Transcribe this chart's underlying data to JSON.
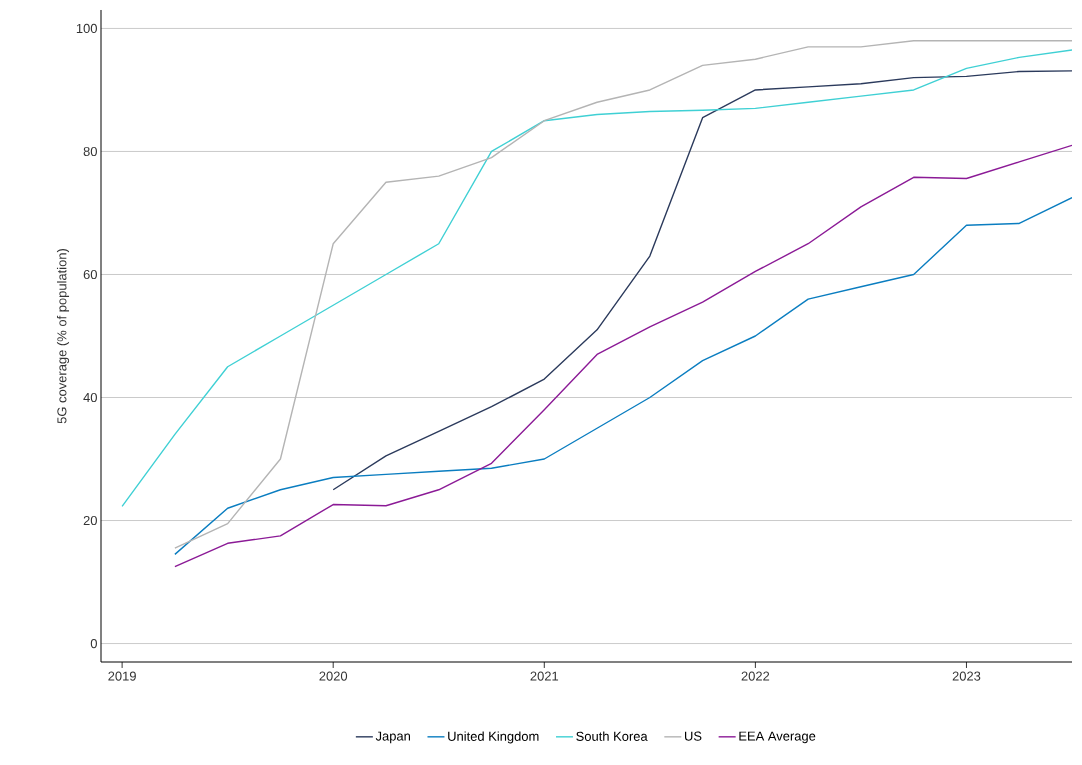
{
  "chart_data": {
    "type": "line",
    "ylabel": "5G coverage (% of population)",
    "x": [
      2019.0,
      2019.25,
      2019.5,
      2019.75,
      2020.0,
      2020.25,
      2020.5,
      2020.75,
      2021.0,
      2021.25,
      2021.5,
      2021.75,
      2022.0,
      2022.25,
      2022.5,
      2022.75,
      2023.0,
      2023.25,
      2023.5
    ],
    "series": [
      {
        "name": "Japan",
        "color": "#2b3a5c",
        "values": [
          null,
          null,
          null,
          null,
          25,
          30.5,
          34.5,
          38.5,
          43,
          51,
          63,
          85.5,
          90,
          90.5,
          91,
          92,
          92.2,
          93,
          93.1
        ]
      },
      {
        "name": "United Kingdom",
        "color": "#0a7dc0",
        "values": [
          null,
          14.5,
          22,
          25,
          27,
          27.5,
          28,
          28.5,
          30,
          35,
          40,
          46,
          50,
          56,
          58,
          60,
          68,
          68.3,
          72.5
        ]
      },
      {
        "name": "South Korea",
        "color": "#3fd0d4",
        "values": [
          22.3,
          34,
          45,
          50,
          55,
          60,
          65,
          80,
          85,
          86,
          86.5,
          86.7,
          87,
          88,
          89,
          90,
          93.5,
          95.3,
          96.5
        ]
      },
      {
        "name": "US",
        "color": "#b4b4b4",
        "values": [
          null,
          15.5,
          19.5,
          30,
          65,
          75,
          76,
          79,
          85,
          88,
          90,
          94,
          95,
          97,
          97,
          98,
          98,
          98,
          98
        ]
      },
      {
        "name": "EEA Average",
        "color": "#8b1a96",
        "values": [
          null,
          12.5,
          16.3,
          17.5,
          22.6,
          22.4,
          25,
          29.3,
          38,
          47,
          51.5,
          55.5,
          60.5,
          65,
          71,
          75.8,
          75.6,
          78.3,
          81
        ]
      }
    ],
    "xlim": [
      2018.9,
      2023.5
    ],
    "xticks": [
      2019,
      2020,
      2021,
      2022,
      2023
    ],
    "ylim": [
      -3,
      103
    ],
    "yticks": [
      0,
      20,
      40,
      60,
      80,
      100
    ],
    "grid": "y",
    "legend": "bottom",
    "marker": "none",
    "line_style": "solid"
  }
}
